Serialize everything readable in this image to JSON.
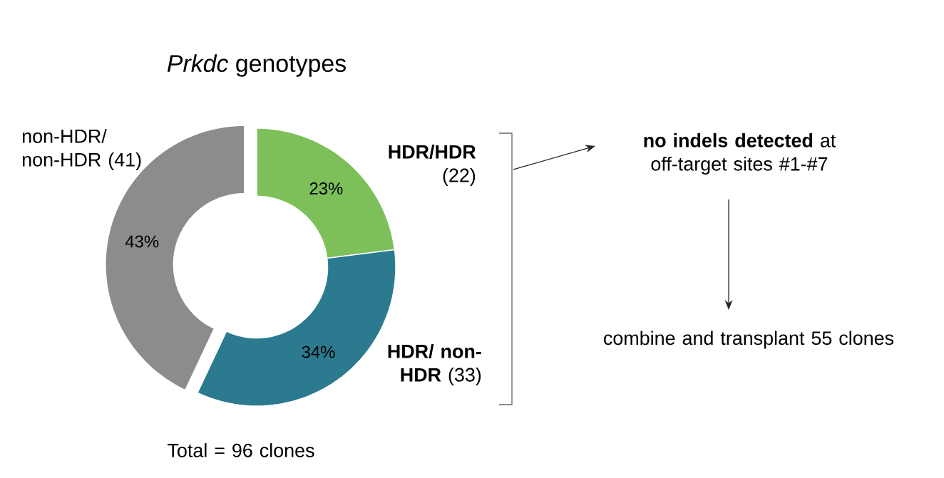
{
  "chart_data": {
    "type": "donut",
    "title": "*Prkdc* genotypes",
    "categories": [
      "**HDR/HDR** (22)",
      "**HDR/ non-HDR** (33)",
      "non-HDR/ non-HDR (41)"
    ],
    "values": [
      23,
      34,
      43
    ],
    "colors": [
      "#7dc05a",
      "#2b7a8f",
      "#8c8c8c"
    ],
    "value_labels": [
      "23%",
      "34%",
      "43%"
    ],
    "annotations": [
      "Total = 96 clones",
      "**no indels detected** at off-target sites #1-#7",
      "combine and transplant 55 clones"
    ]
  }
}
